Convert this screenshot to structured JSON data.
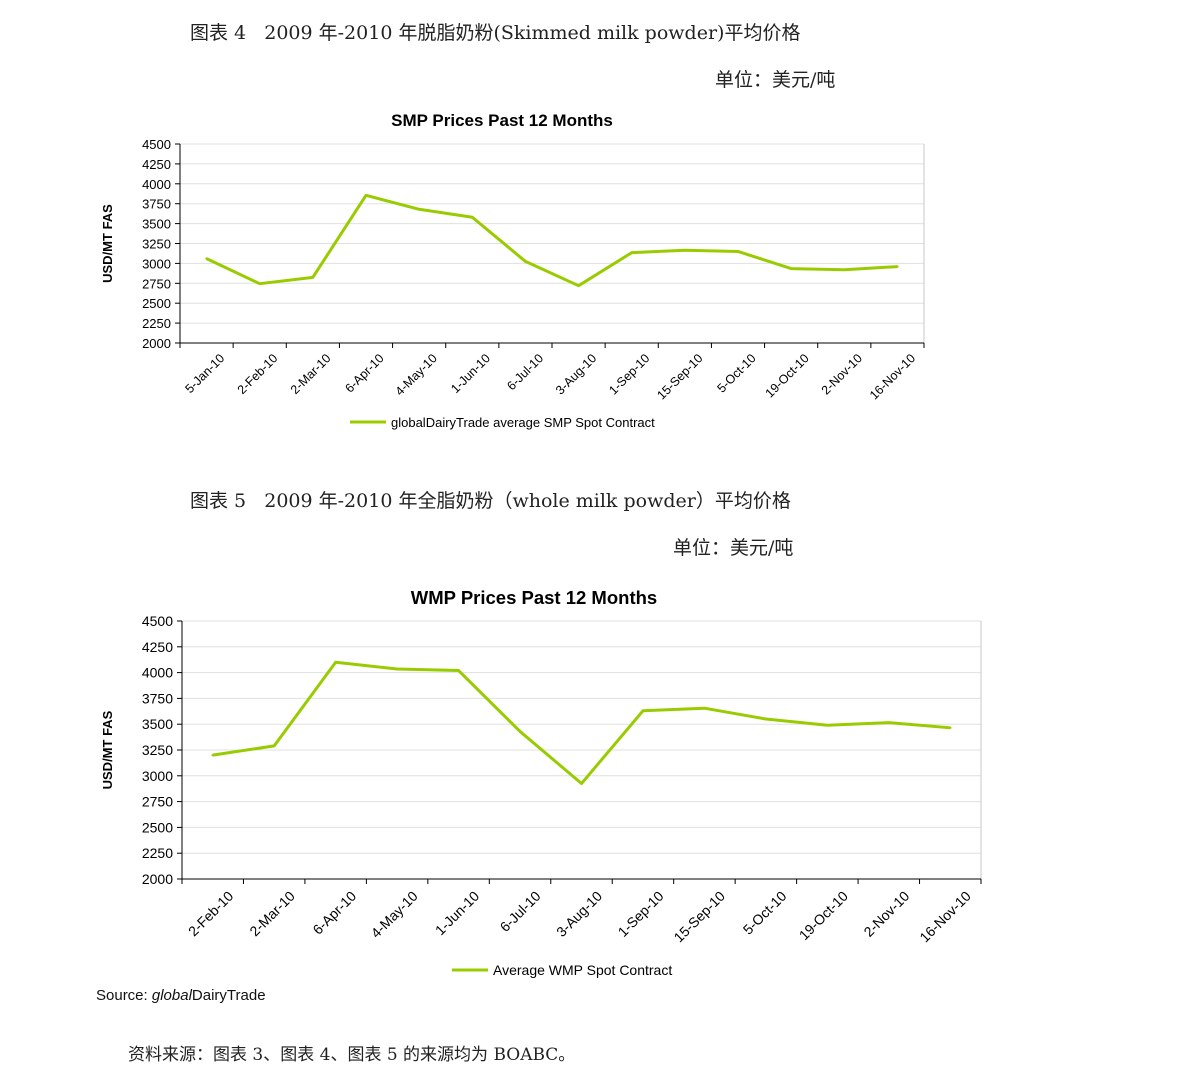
{
  "figure4": {
    "caption": "图表 4   2009 年-2010 年脱脂奶粉(Skimmed milk powder)平均价格",
    "unit": "单位：美元/吨"
  },
  "figure5": {
    "caption": "图表 5   2009 年-2010 年全脂奶粉（whole milk powder）平均价格",
    "unit": "单位：美元/吨"
  },
  "source": {
    "prefix": "Source: ",
    "italic": "global",
    "suffix": "DairyTrade"
  },
  "footer": "资料来源：图表 3、图表 4、图表 5 的来源均为 BOABC。",
  "colors": {
    "line": "#99cc00",
    "grid": "#e0e0e0",
    "axis": "#000000"
  },
  "chart_data": [
    {
      "type": "line",
      "title": "SMP Prices Past 12 Months",
      "ylabel": "USD/MT FAS",
      "xlabel": "",
      "ylim": [
        2000,
        4500
      ],
      "yticks": [
        2000,
        2250,
        2500,
        2750,
        3000,
        3250,
        3500,
        3750,
        4000,
        4250,
        4500
      ],
      "categories": [
        "5-Jan-10",
        "2-Feb-10",
        "2-Mar-10",
        "6-Apr-10",
        "4-May-10",
        "1-Jun-10",
        "6-Jul-10",
        "3-Aug-10",
        "1-Sep-10",
        "15-Sep-10",
        "5-Oct-10",
        "19-Oct-10",
        "2-Nov-10",
        "16-Nov-10"
      ],
      "series": [
        {
          "name": "globalDairyTrade average SMP Spot Contract",
          "values": [
            3060,
            2745,
            2825,
            3855,
            3680,
            3580,
            3025,
            2720,
            3135,
            3165,
            3150,
            2935,
            2920,
            2960
          ]
        }
      ],
      "legend": "bottom",
      "grid": true
    },
    {
      "type": "line",
      "title": "WMP Prices Past 12 Months",
      "ylabel": "USD/MT FAS",
      "xlabel": "",
      "ylim": [
        2000,
        4500
      ],
      "yticks": [
        2000,
        2250,
        2500,
        2750,
        3000,
        3250,
        3500,
        3750,
        4000,
        4250,
        4500
      ],
      "categories": [
        "2-Feb-10",
        "2-Mar-10",
        "6-Apr-10",
        "4-May-10",
        "1-Jun-10",
        "6-Jul-10",
        "3-Aug-10",
        "1-Sep-10",
        "15-Sep-10",
        "5-Oct-10",
        "19-Oct-10",
        "2-Nov-10",
        "16-Nov-10"
      ],
      "series": [
        {
          "name": "Average WMP Spot Contract",
          "values": [
            3200,
            3290,
            4100,
            4035,
            4020,
            3430,
            2925,
            3630,
            3655,
            3550,
            3490,
            3515,
            3465
          ]
        }
      ],
      "legend": "bottom",
      "grid": true
    }
  ]
}
